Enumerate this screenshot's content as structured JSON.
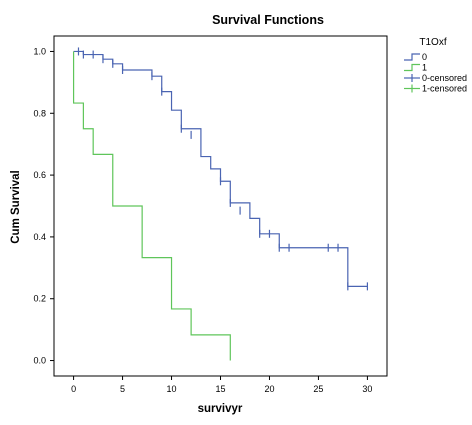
{
  "chart_data": {
    "type": "line",
    "title": "Survival Functions",
    "xlabel": "survivyr",
    "ylabel": "Cum Survival",
    "xlim": [
      -2,
      32
    ],
    "ylim": [
      -0.05,
      1.05
    ],
    "x_ticks": [
      0,
      5,
      10,
      15,
      20,
      25,
      30
    ],
    "y_ticks": [
      0.0,
      0.2,
      0.4,
      0.6,
      0.8,
      1.0
    ],
    "x_tick_labels": [
      "0",
      "5",
      "10",
      "15",
      "20",
      "25",
      "30"
    ],
    "y_tick_labels": [
      "0.0",
      "0.2",
      "0.4",
      "0.6",
      "0.8",
      "1.0"
    ],
    "grid": false,
    "legend": {
      "title": "T1Oxf",
      "position": "top-right",
      "entries": [
        {
          "label": "0",
          "style": "step",
          "color": "#4a64b2"
        },
        {
          "label": "1",
          "style": "step",
          "color": "#5fc55a"
        },
        {
          "label": "0-censored",
          "style": "censor",
          "color": "#4a64b2"
        },
        {
          "label": "1-censored",
          "style": "censor",
          "color": "#5fc55a"
        }
      ]
    },
    "series": [
      {
        "name": "0",
        "color": "#4a64b2",
        "steps": [
          [
            0,
            1.0
          ],
          [
            1,
            0.99
          ],
          [
            3,
            0.975
          ],
          [
            4,
            0.96
          ],
          [
            5,
            0.94
          ],
          [
            8,
            0.92
          ],
          [
            9,
            0.87
          ],
          [
            10,
            0.81
          ],
          [
            11,
            0.75
          ],
          [
            13,
            0.66
          ],
          [
            14,
            0.62
          ],
          [
            15,
            0.58
          ],
          [
            16,
            0.51
          ],
          [
            18,
            0.46
          ],
          [
            19,
            0.41
          ],
          [
            21,
            0.365
          ],
          [
            28,
            0.24
          ],
          [
            30,
            0.24
          ]
        ],
        "censored": [
          [
            0.5,
            1.0
          ],
          [
            1,
            0.99
          ],
          [
            2,
            0.99
          ],
          [
            3,
            0.975
          ],
          [
            4,
            0.96
          ],
          [
            5,
            0.94
          ],
          [
            8,
            0.92
          ],
          [
            9,
            0.87
          ],
          [
            11,
            0.75
          ],
          [
            12,
            0.73
          ],
          [
            15,
            0.58
          ],
          [
            16,
            0.51
          ],
          [
            17,
            0.485
          ],
          [
            19,
            0.41
          ],
          [
            20,
            0.41
          ],
          [
            21,
            0.365
          ],
          [
            22,
            0.365
          ],
          [
            26,
            0.365
          ],
          [
            27,
            0.365
          ],
          [
            28,
            0.24
          ],
          [
            30,
            0.24
          ]
        ]
      },
      {
        "name": "1",
        "color": "#5fc55a",
        "steps": [
          [
            0,
            1.0
          ],
          [
            0,
            0.833
          ],
          [
            1,
            0.75
          ],
          [
            2,
            0.667
          ],
          [
            4,
            0.5
          ],
          [
            7,
            0.333
          ],
          [
            10,
            0.167
          ],
          [
            12,
            0.083
          ],
          [
            16,
            0.0
          ]
        ],
        "censored": []
      }
    ]
  }
}
